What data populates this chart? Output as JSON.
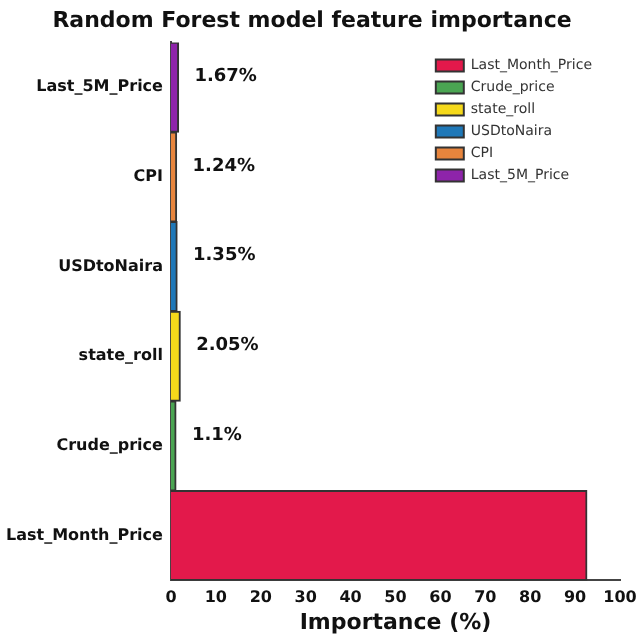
{
  "chart_data": {
    "type": "bar",
    "orientation": "horizontal",
    "title": "Random Forest model feature importance",
    "xlabel": "Importance (%)",
    "categories": [
      "Last_5M_Price",
      "CPI",
      "USDtoNaira",
      "state_roll",
      "Crude_price",
      "Last_Month_Price"
    ],
    "series": [
      {
        "name": "Last_Month_Price",
        "color": "#e3194b",
        "values": [
          null,
          null,
          null,
          null,
          null,
          92.6
        ],
        "value_labels": [
          null,
          null,
          null,
          null,
          null,
          null
        ]
      },
      {
        "name": "Crude_price",
        "color": "#4aa552",
        "values": [
          null,
          null,
          null,
          null,
          1.1,
          null
        ],
        "value_labels": [
          null,
          null,
          null,
          null,
          "1.1%",
          null
        ]
      },
      {
        "name": "state_roll",
        "color": "#f5d91b",
        "values": [
          null,
          null,
          null,
          2.05,
          null,
          null
        ],
        "value_labels": [
          null,
          null,
          null,
          "2.05%",
          null,
          null
        ]
      },
      {
        "name": "USDtoNaira",
        "color": "#1f78b8",
        "values": [
          null,
          null,
          1.35,
          null,
          null,
          null
        ],
        "value_labels": [
          null,
          null,
          "1.35%",
          null,
          null,
          null
        ]
      },
      {
        "name": "CPI",
        "color": "#e8853d",
        "values": [
          null,
          1.24,
          null,
          null,
          null,
          null
        ],
        "value_labels": [
          null,
          "1.24%",
          null,
          null,
          null,
          null
        ]
      },
      {
        "name": "Last_5M_Price",
        "color": "#8e24aa",
        "values": [
          1.67,
          null,
          null,
          null,
          null,
          null
        ],
        "value_labels": [
          "1.67%",
          null,
          null,
          null,
          null,
          null
        ]
      }
    ],
    "xlim": [
      0,
      100
    ],
    "xticks": [
      0,
      10,
      20,
      30,
      40,
      50,
      60,
      70,
      80,
      90,
      100
    ],
    "legend": "top right",
    "grid": false
  }
}
